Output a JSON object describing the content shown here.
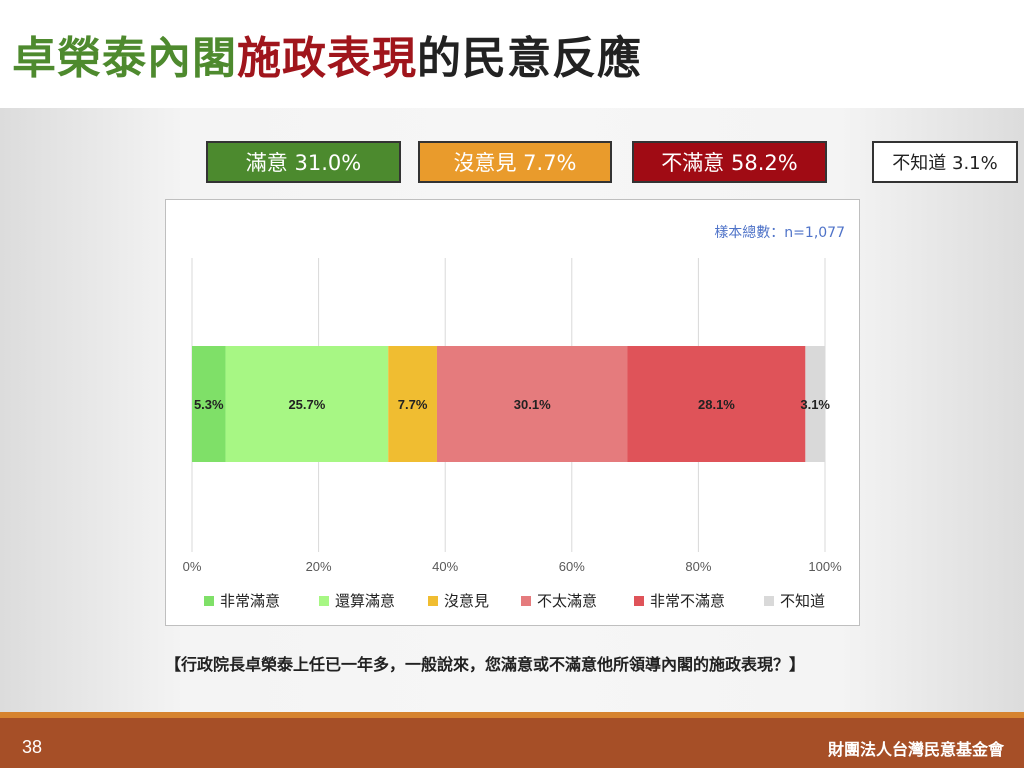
{
  "title": {
    "part1": "卓榮泰內閣",
    "part2": "施政表現",
    "part3": "的民意反應",
    "part1_color": "#4e8a2e",
    "part2_color": "#a0151c",
    "part3_color": "#222222"
  },
  "summary": [
    {
      "text": "滿意 31.0%",
      "bg": "#4c8a2e",
      "fg": "#ffffff"
    },
    {
      "text": "沒意見 7.7%",
      "bg": "#e99b2c",
      "fg": "#ffffff"
    },
    {
      "text": "不滿意 58.2%",
      "bg": "#a00b14",
      "fg": "#ffffff"
    },
    {
      "text": "不知道 3.1%",
      "bg": "#ffffff",
      "fg": "#222222"
    }
  ],
  "sample_size": "樣本總數：n=1,077",
  "chart_data": {
    "type": "bar",
    "orientation": "horizontal",
    "stacked": true,
    "xlim": [
      0,
      100
    ],
    "x_ticks": [
      "0%",
      "20%",
      "40%",
      "60%",
      "80%",
      "100%"
    ],
    "grid": true,
    "legend_position": "bottom",
    "series": [
      {
        "name": "非常滿意",
        "value": 5.3,
        "label": "5.3%",
        "color": "#7fe068"
      },
      {
        "name": "還算滿意",
        "value": 25.7,
        "label": "25.7%",
        "color": "#a7f784"
      },
      {
        "name": "沒意見",
        "value": 7.7,
        "label": "7.7%",
        "color": "#f0bd31"
      },
      {
        "name": "不太滿意",
        "value": 30.1,
        "label": "30.1%",
        "color": "#e57b7d"
      },
      {
        "name": "非常不滿意",
        "value": 28.1,
        "label": "28.1%",
        "color": "#df5359"
      },
      {
        "name": "不知道",
        "value": 3.1,
        "label": "3.1%",
        "color": "#d9d9d9"
      }
    ]
  },
  "question": "【行政院長卓榮泰上任已一年多，一般說來，您滿意或不滿意他所領導內閣的施政表現？】",
  "footer": {
    "page_number": "38",
    "organization": "財團法人台灣民意基金會"
  }
}
